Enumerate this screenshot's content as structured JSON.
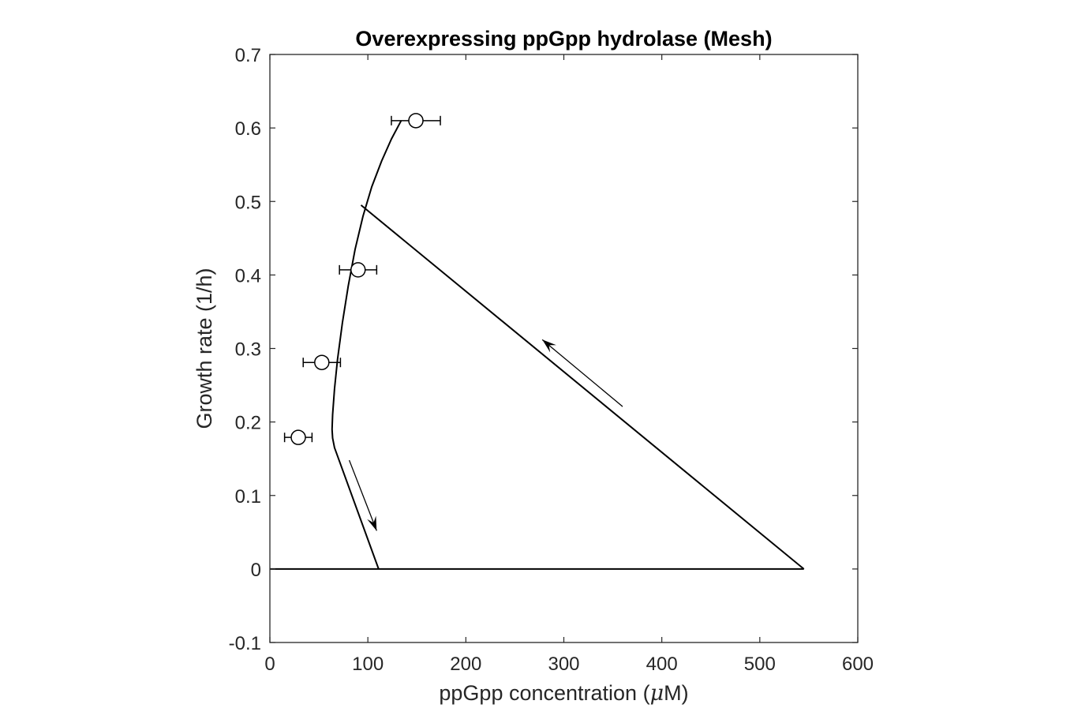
{
  "chart_data": {
    "type": "line",
    "title": "Overexpressing ppGpp hydrolase (Mesh)",
    "xlabel": "ppGpp concentration (μM)",
    "xlabel_parts": [
      "ppGpp concentration (",
      "μ",
      "M)"
    ],
    "ylabel": "Growth rate (1/h)",
    "xlim": [
      0,
      600
    ],
    "ylim": [
      -0.1,
      0.7
    ],
    "xticks": [
      0,
      100,
      200,
      300,
      400,
      500,
      600
    ],
    "yticks": [
      -0.1,
      0,
      0.1,
      0.2,
      0.3,
      0.4,
      0.5,
      0.6,
      0.7
    ],
    "xtick_labels": [
      "0",
      "100",
      "200",
      "300",
      "400",
      "500",
      "600"
    ],
    "ytick_labels": [
      "-0.1",
      "0",
      "0.1",
      "0.2",
      "0.3",
      "0.4",
      "0.5",
      "0.6",
      "0.7"
    ],
    "grid": false,
    "line_color": "#000000",
    "series": [
      {
        "kind": "model-curve",
        "x": [
          134,
          124,
          114,
          104,
          95,
          87,
          80,
          74,
          69,
          66,
          64,
          63.5,
          64,
          66,
          111
        ],
        "y": [
          0.61,
          0.585,
          0.555,
          0.52,
          0.48,
          0.435,
          0.385,
          0.335,
          0.285,
          0.245,
          0.21,
          0.19,
          0.178,
          0.165,
          0.0
        ]
      },
      {
        "kind": "diagonal-segment",
        "x": [
          93,
          545
        ],
        "y": [
          0.495,
          0.0
        ]
      },
      {
        "kind": "baseline",
        "x": [
          0,
          545
        ],
        "y": [
          0.0,
          0.0
        ]
      },
      {
        "kind": "data-points",
        "marker": "open-circle",
        "x": [
          29,
          53,
          90,
          149
        ],
        "y": [
          0.179,
          0.281,
          0.407,
          0.61
        ],
        "xerr": [
          14,
          19,
          19,
          25
        ]
      }
    ],
    "arrows": [
      {
        "from": [
          360,
          0.221
        ],
        "to": [
          278,
          0.312
        ]
      },
      {
        "from": [
          81,
          0.148
        ],
        "to": [
          109,
          0.052
        ]
      }
    ]
  }
}
